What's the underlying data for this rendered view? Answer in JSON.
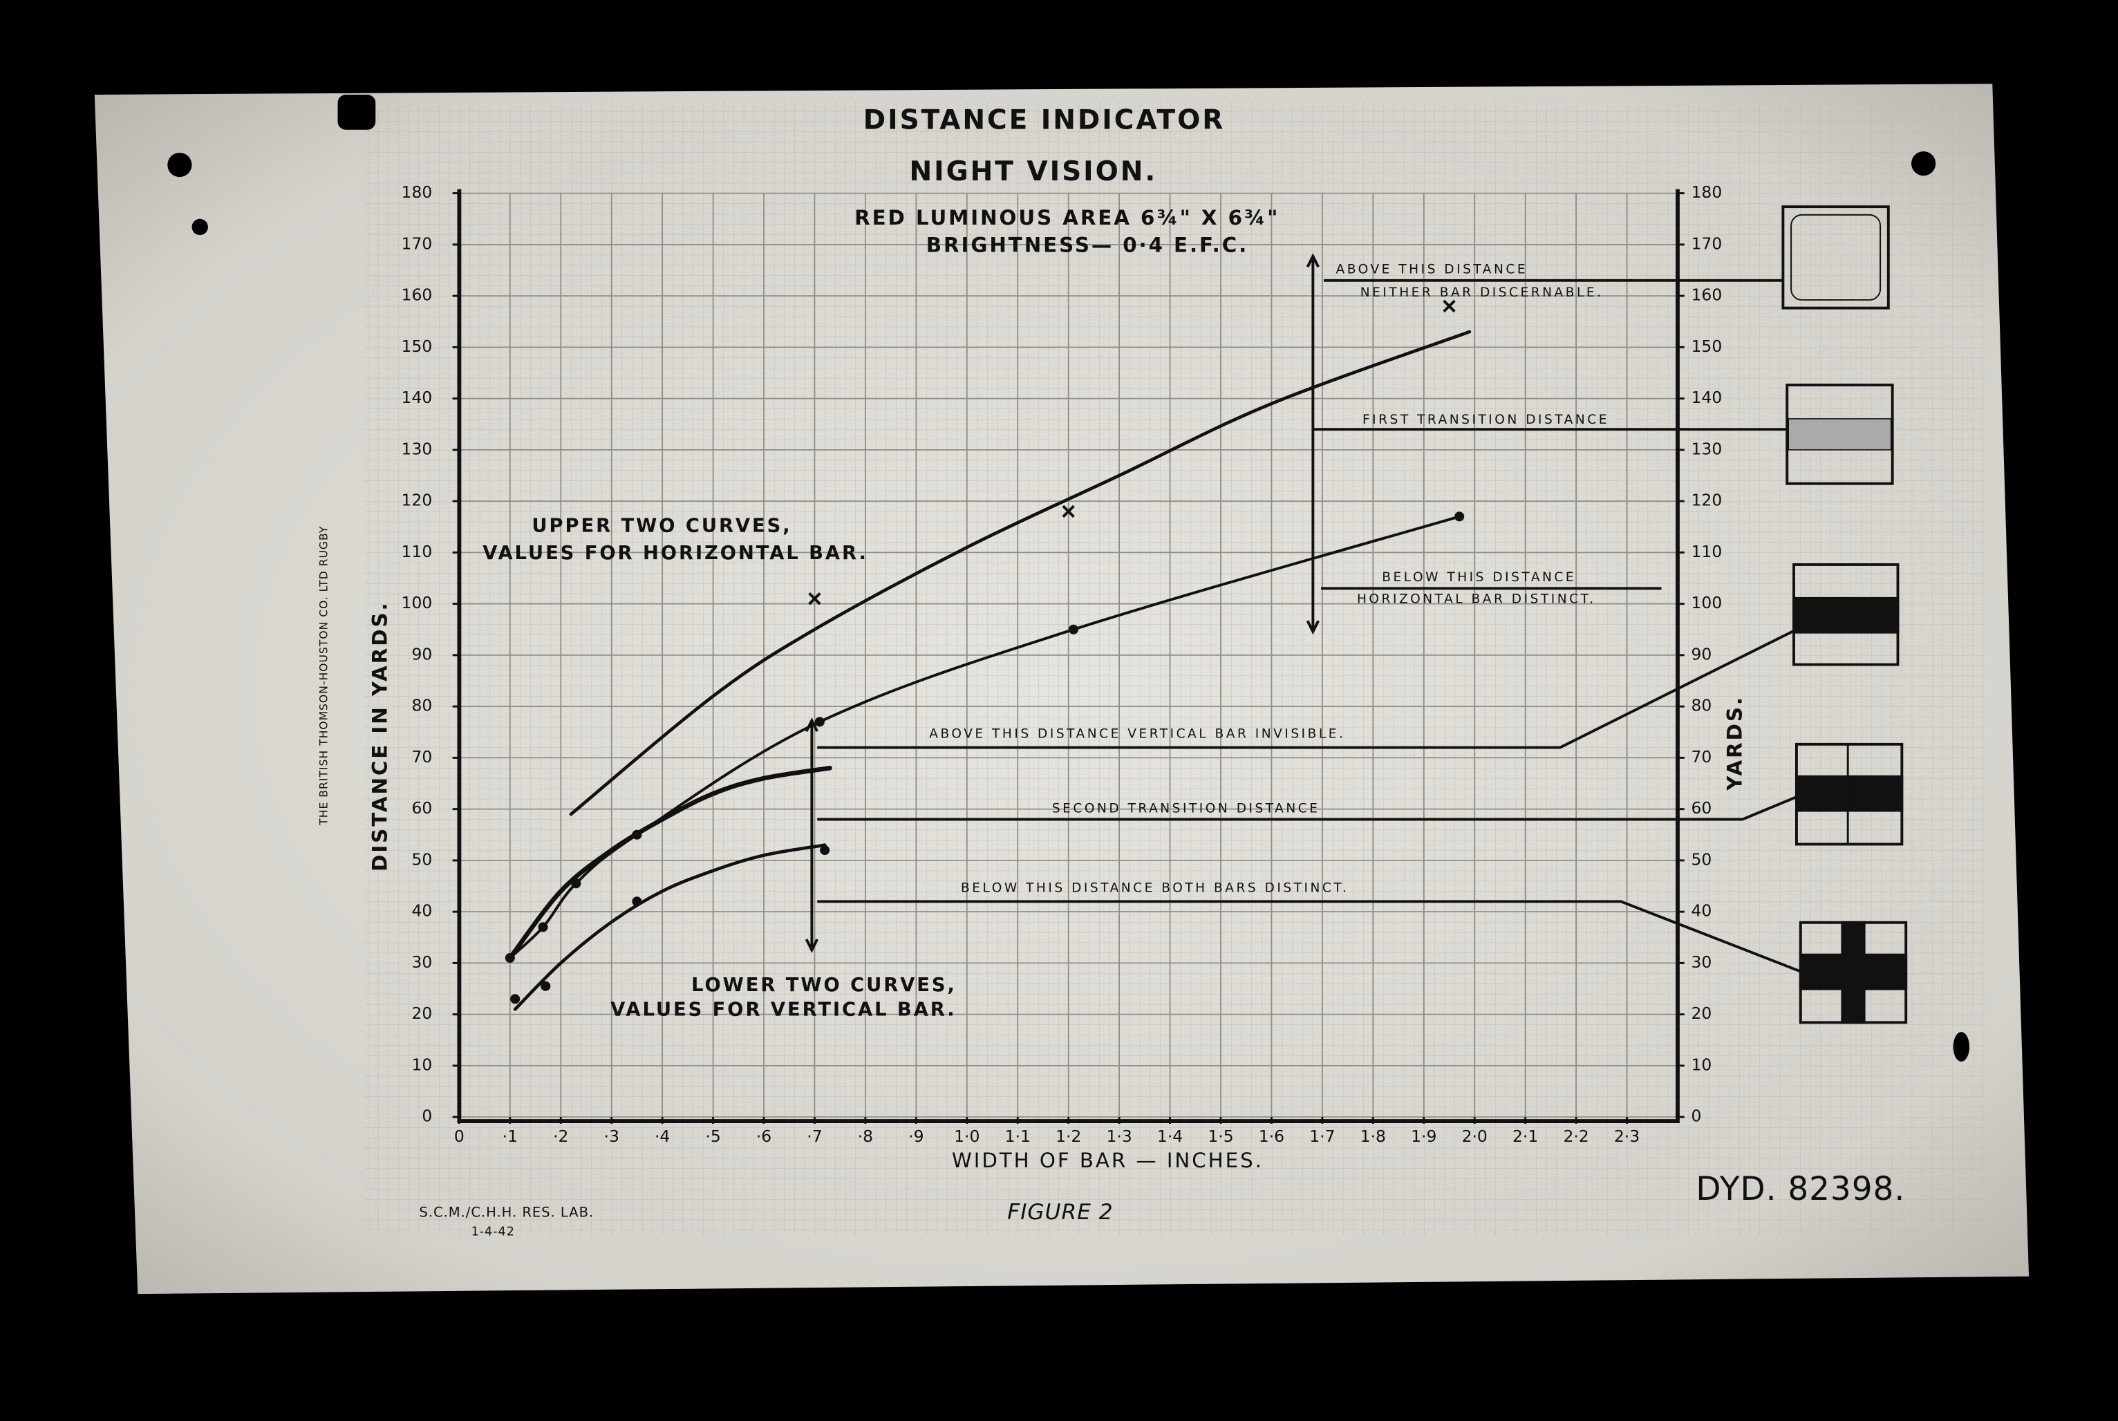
{
  "chart_data": {
    "type": "line",
    "title": "DISTANCE INDICATOR",
    "subtitle": "NIGHT VISION.",
    "annotations": [
      "RED LUMINOUS AREA 6¾\" X 6¾\"",
      "BRIGHTNESS— 0·4 E.F.C.",
      "UPPER TWO CURVES,",
      "VALUES FOR HORIZONTAL BAR.",
      "LOWER TWO CURVES,",
      "VALUES FOR VERTICAL BAR.",
      "THE BRITISH THOMSON-HOUSTON CO. LTD RUGBY",
      "S.C.M./C.H.H. RES. LAB.",
      "1-4-42",
      "FIGURE 2",
      "DYD. 82398."
    ],
    "xlabel": "WIDTH OF BAR — INCHES.",
    "ylabel": "DISTANCE IN YARDS.",
    "y2label": "YARDS.",
    "xlim": [
      0,
      2.4
    ],
    "xticks": [
      0,
      {
        "value": 0.1,
        "label": "·1"
      },
      {
        "value": 0.2,
        "label": "·2"
      },
      {
        "value": 0.3,
        "label": "·3"
      },
      {
        "value": 0.4,
        "label": "·4"
      },
      {
        "value": 0.5,
        "label": "·5"
      },
      {
        "value": 0.6,
        "label": "·6"
      },
      {
        "value": 0.7,
        "label": "·7"
      },
      {
        "value": 0.8,
        "label": "·8"
      },
      {
        "value": 0.9,
        "label": "·9"
      },
      {
        "value": 1,
        "label": "1·0"
      },
      {
        "value": 1.1,
        "label": "1·1"
      },
      {
        "value": 1.2,
        "label": "1·2"
      },
      {
        "value": 1.3,
        "label": "1·3"
      },
      {
        "value": 1.4,
        "label": "1·4"
      },
      {
        "value": 1.5,
        "label": "1·5"
      },
      {
        "value": 1.6,
        "label": "1·6"
      },
      {
        "value": 1.7,
        "label": "1·7"
      },
      {
        "value": 1.8,
        "label": "1·8"
      },
      {
        "value": 1.9,
        "label": "1·9"
      },
      {
        "value": 2,
        "label": "2·0"
      },
      {
        "value": 2.1,
        "label": "2·1"
      },
      {
        "value": 2.2,
        "label": "2·2"
      },
      {
        "value": 2.3,
        "label": "2·3"
      }
    ],
    "ylim": [
      0,
      180
    ],
    "yticks": [
      0,
      10,
      20,
      30,
      40,
      50,
      60,
      70,
      80,
      90,
      100,
      110,
      120,
      130,
      140,
      150,
      160,
      170,
      180
    ],
    "y2lim": [
      0,
      180
    ],
    "y2ticks": [
      0,
      10,
      20,
      30,
      40,
      50,
      60,
      70,
      80,
      90,
      100,
      110,
      120,
      130,
      140,
      150,
      160,
      170,
      180
    ],
    "grid": true,
    "series": [
      {
        "style": "line",
        "color": "#111",
        "width": 2.4,
        "x": [
          0.22,
          0.5,
          0.7,
          1.0,
          1.3,
          1.6,
          1.99
        ],
        "values": [
          59,
          82,
          95,
          111,
          125,
          139,
          153
        ]
      },
      {
        "style": "points",
        "marker": "x",
        "color": "#111",
        "x": [
          0.7,
          1.2,
          1.95
        ],
        "values": [
          101,
          118,
          158
        ]
      },
      {
        "style": "line",
        "color": "#111",
        "width": 2,
        "x": [
          0.1,
          0.165,
          0.23,
          0.35,
          0.71,
          1.21,
          1.97
        ],
        "values": [
          31,
          37,
          45.5,
          55,
          77,
          95,
          117
        ]
      },
      {
        "style": "points",
        "marker": "circle",
        "color": "#111",
        "x": [
          0.1,
          0.165,
          0.23,
          0.35,
          0.71,
          1.21,
          1.97
        ],
        "values": [
          31,
          37,
          45.5,
          55,
          77,
          95,
          117
        ]
      },
      {
        "style": "line",
        "color": "#111",
        "width": 3.4,
        "x": [
          0.1,
          0.2,
          0.3,
          0.4,
          0.5,
          0.6,
          0.73
        ],
        "values": [
          31,
          44,
          52,
          58,
          63,
          66,
          68
        ]
      },
      {
        "style": "line",
        "color": "#111",
        "width": 2.4,
        "x": [
          0.11,
          0.2,
          0.3,
          0.4,
          0.5,
          0.6,
          0.72
        ],
        "values": [
          21,
          30,
          38,
          44,
          48,
          51,
          53
        ]
      },
      {
        "style": "points",
        "marker": "circle",
        "color": "#111",
        "x": [
          0.11,
          0.17,
          0.35,
          0.72
        ],
        "values": [
          23,
          25.5,
          42,
          52
        ]
      }
    ],
    "reference_lines": [
      {
        "value": 163,
        "label": [
          "ABOVE THIS DISTANCE",
          "NEITHER BAR DISCERNABLE."
        ]
      },
      {
        "value": 134,
        "label": [
          "FIRST TRANSITION DISTANCE"
        ]
      },
      {
        "value": 103,
        "label": [
          "BELOW THIS DISTANCE",
          "HORIZONTAL BAR DISTINCT."
        ]
      },
      {
        "value": 72,
        "label": [
          "ABOVE THIS DISTANCE VERTICAL BAR INVISIBLE."
        ]
      },
      {
        "value": 58,
        "label": [
          "SECOND TRANSITION DISTANCE"
        ]
      },
      {
        "value": 42,
        "label": [
          "BELOW THIS DISTANCE BOTH BARS DISTINCT."
        ]
      }
    ]
  }
}
